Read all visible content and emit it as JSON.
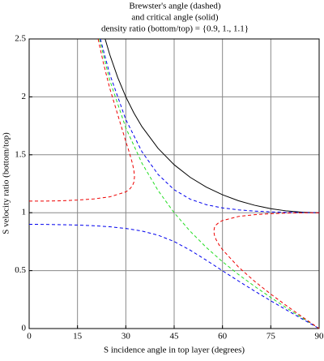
{
  "chart_data": {
    "type": "line",
    "title": [
      "Brewster's angle (dashed)",
      "and critical angle (solid)",
      "density ratio (bottom/top) = {0.9, 1., 1.1}"
    ],
    "xlabel": "S incidence angle in top layer (degrees)",
    "ylabel": "S velocity ratio (bottom/top)",
    "xlim": [
      0,
      90
    ],
    "ylim": [
      0,
      2.5
    ],
    "xticks": [
      0,
      15,
      30,
      45,
      60,
      75,
      90
    ],
    "yticks": [
      0,
      0.5,
      1,
      1.5,
      2,
      2.5
    ],
    "grid": true,
    "series": [
      {
        "color": "#000000",
        "dashed": false,
        "x": [
          23.58,
          25,
          27.5,
          30,
          32.5,
          35,
          40,
          45,
          50,
          55,
          60,
          65,
          70,
          75,
          80,
          85,
          90
        ],
        "values": [
          2.5,
          2.366,
          2.166,
          2,
          1.861,
          1.743,
          1.556,
          1.414,
          1.305,
          1.221,
          1.155,
          1.103,
          1.064,
          1.035,
          1.015,
          1.004,
          1
        ]
      },
      {
        "color": "#22dd22",
        "dashed": true,
        "x": [
          21.8,
          25,
          30,
          35,
          40,
          45,
          50,
          55,
          60,
          65,
          70,
          75,
          80,
          85,
          90
        ],
        "values": [
          2.5,
          2.145,
          1.732,
          1.428,
          1.192,
          1,
          0.839,
          0.7,
          0.577,
          0.466,
          0.364,
          0.268,
          0.176,
          0.087,
          0
        ]
      },
      {
        "color": "#0000ee",
        "dashed": true,
        "x": [
          0,
          5,
          10,
          15,
          20,
          25,
          30,
          35,
          40,
          45,
          50,
          55,
          60,
          65,
          70,
          75,
          80,
          85,
          90
        ],
        "values": [
          0.9,
          0.899,
          0.8966,
          0.8935,
          0.8876,
          0.8785,
          0.8643,
          0.8419,
          0.8061,
          0.7511,
          0.6764,
          0.5895,
          0.499,
          0.4096,
          0.3231,
          0.2394,
          0.1582,
          0.0787,
          0
        ]
      },
      {
        "color": "#0000ee",
        "dashed": true,
        "x": [
          22.1,
          25,
          30,
          35,
          40,
          45,
          50,
          55,
          60,
          65,
          70,
          75,
          80,
          85,
          90
        ],
        "values": [
          2.5,
          2.197,
          1.8036,
          1.5267,
          1.3306,
          1.1983,
          1.1165,
          1.069,
          1.0413,
          1.0245,
          1.014,
          1.0072,
          1.0031,
          1.0007,
          1
        ]
      },
      {
        "color": "#ee0000",
        "dashed": true,
        "x": [
          0,
          5,
          10,
          15,
          20,
          25,
          30,
          31,
          32,
          32.5,
          32.69,
          32.5,
          32,
          31,
          30,
          25,
          23,
          21.4
        ],
        "values": [
          1.1,
          1.1005,
          1.1029,
          1.1091,
          1.1187,
          1.1367,
          1.1797,
          1.1984,
          1.2302,
          1.2635,
          1.3093,
          1.3665,
          1.431,
          1.5277,
          1.615,
          2.0753,
          2.2973,
          2.5
        ]
      },
      {
        "color": "#ee0000",
        "dashed": true,
        "x": [
          90,
          85,
          80,
          75,
          70,
          65,
          60,
          59,
          58,
          57.5,
          57.31,
          57.5,
          58,
          59,
          60,
          65,
          70,
          75,
          80,
          85,
          90
        ],
        "values": [
          1,
          0.9992,
          0.9966,
          0.9917,
          0.9832,
          0.9677,
          0.9324,
          0.9179,
          0.8942,
          0.8706,
          0.8402,
          0.805,
          0.7687,
          0.7201,
          0.6811,
          0.53,
          0.4072,
          0.2972,
          0.1946,
          0.0963,
          0
        ]
      }
    ]
  }
}
